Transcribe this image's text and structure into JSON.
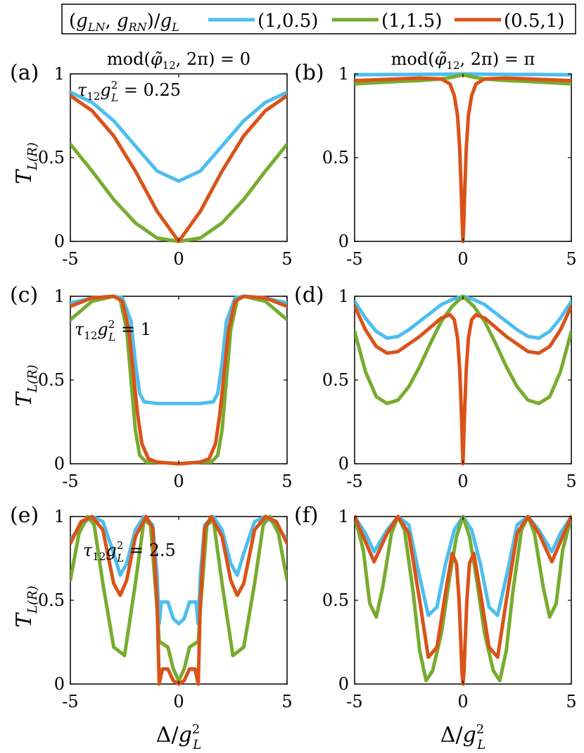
{
  "legend": {
    "title": "(g_LN, g_RN)/g_L",
    "title_parts": [
      "(",
      "g",
      "LN",
      ", ",
      "g",
      "RN",
      ")/",
      "g",
      "L"
    ],
    "entries": [
      "(1,0.5)",
      "(1,1.5)",
      "(0.5,1)"
    ]
  },
  "colors": {
    "blue": "#4DBEEE",
    "green": "#77AC30",
    "red": "#D95319"
  },
  "column_titles": {
    "left": {
      "prefix": "mod(",
      "phi": "φ̃",
      "sub": "12",
      "suffix": ", 2π) = 0"
    },
    "right": {
      "prefix": "mod(",
      "phi": "φ̃",
      "sub": "12",
      "suffix": ", 2π) = π"
    }
  },
  "row_annotations": [
    {
      "tau": "τ",
      "sub": "12",
      "g": "g",
      "sup": "2",
      "gsub": "L",
      "value": " = 0.25"
    },
    {
      "tau": "τ",
      "sub": "12",
      "g": "g",
      "sup": "2",
      "gsub": "L",
      "value": " = 1"
    },
    {
      "tau": "τ",
      "sub": "12",
      "g": "g",
      "sup": "2",
      "gsub": "L",
      "value": " = 2.5"
    }
  ],
  "ylabel": {
    "main": "T",
    "sub": "L(R)"
  },
  "xlabel": {
    "main": "Δ/",
    "g": "g",
    "sup": "2",
    "sub": "L"
  },
  "chart_data": [
    {
      "panel": "(a)",
      "type": "line",
      "xlim": [
        -5,
        5
      ],
      "ylim": [
        0,
        1
      ],
      "xticks": [
        "-5",
        "0",
        "5"
      ],
      "yticks": [
        "0",
        "0.5",
        "1"
      ],
      "series": [
        {
          "name": "(1,0.5)",
          "color": "blue",
          "x": [
            -5,
            -4,
            -3,
            -2,
            -1,
            0,
            1,
            2,
            3,
            4,
            5
          ],
          "y": [
            0.89,
            0.83,
            0.72,
            0.57,
            0.42,
            0.36,
            0.42,
            0.57,
            0.72,
            0.83,
            0.89
          ]
        },
        {
          "name": "(1,1.5)",
          "color": "green",
          "x": [
            -5,
            -4,
            -3,
            -2,
            -1,
            0,
            1,
            2,
            3,
            4,
            5
          ],
          "y": [
            0.58,
            0.42,
            0.25,
            0.11,
            0.02,
            0,
            0.02,
            0.11,
            0.25,
            0.42,
            0.58
          ]
        },
        {
          "name": "(0.5,1)",
          "color": "red",
          "x": [
            -5,
            -4,
            -3,
            -2,
            -1,
            0,
            1,
            2,
            3,
            4,
            5
          ],
          "y": [
            0.87,
            0.78,
            0.63,
            0.42,
            0.18,
            0,
            0.18,
            0.42,
            0.63,
            0.78,
            0.87
          ]
        }
      ]
    },
    {
      "panel": "(b)",
      "type": "line",
      "xlim": [
        -5,
        5
      ],
      "ylim": [
        0,
        1
      ],
      "xticks": [
        "-5",
        "0",
        "5"
      ],
      "yticks": [
        "0",
        "0.5",
        "1"
      ],
      "series": [
        {
          "name": "(1,0.5)",
          "color": "blue",
          "x": [
            -5,
            -2,
            -1,
            0,
            1,
            2,
            5
          ],
          "y": [
            0.995,
            0.997,
            0.998,
            1,
            0.998,
            0.997,
            0.995
          ]
        },
        {
          "name": "(1,1.5)",
          "color": "green",
          "x": [
            -5,
            -3,
            -2,
            -1,
            -0.5,
            0,
            0.5,
            1,
            2,
            3,
            5
          ],
          "y": [
            0.94,
            0.955,
            0.96,
            0.97,
            0.98,
            0.995,
            0.98,
            0.97,
            0.96,
            0.955,
            0.94
          ]
        },
        {
          "name": "(0.5,1)",
          "color": "red",
          "x": [
            -5,
            -2,
            -1,
            -0.6,
            -0.4,
            -0.25,
            -0.15,
            -0.08,
            -0.04,
            0,
            0.04,
            0.08,
            0.15,
            0.25,
            0.4,
            0.6,
            1,
            2,
            5
          ],
          "y": [
            0.96,
            0.975,
            0.97,
            0.94,
            0.87,
            0.75,
            0.55,
            0.3,
            0.12,
            0,
            0.12,
            0.3,
            0.55,
            0.75,
            0.87,
            0.94,
            0.97,
            0.975,
            0.96
          ]
        }
      ]
    },
    {
      "panel": "(c)",
      "type": "line",
      "xlim": [
        -5,
        5
      ],
      "ylim": [
        0,
        1
      ],
      "xticks": [
        "-5",
        "0",
        "5"
      ],
      "yticks": [
        "0",
        "0.5",
        "1"
      ],
      "series": [
        {
          "name": "(1,0.5)",
          "color": "blue",
          "x": [
            -5,
            -4,
            -3,
            -2.6,
            -2.2,
            -2,
            -1.8,
            -1.6,
            -1,
            0,
            1,
            1.6,
            1.8,
            2,
            2.2,
            2.6,
            3,
            4,
            5
          ],
          "y": [
            0.96,
            0.99,
            1,
            0.99,
            0.85,
            0.6,
            0.42,
            0.37,
            0.36,
            0.36,
            0.36,
            0.37,
            0.42,
            0.6,
            0.85,
            0.99,
            1,
            0.99,
            0.96
          ]
        },
        {
          "name": "(1,1.5)",
          "color": "green",
          "x": [
            -5,
            -4,
            -3,
            -2.7,
            -2.4,
            -2.2,
            -2,
            -1.8,
            -1.5,
            -1,
            0,
            1,
            1.5,
            1.8,
            2,
            2.2,
            2.4,
            2.7,
            3,
            4,
            5
          ],
          "y": [
            0.86,
            0.97,
            1,
            0.98,
            0.8,
            0.5,
            0.2,
            0.05,
            0.01,
            0.01,
            0,
            0.01,
            0.01,
            0.05,
            0.2,
            0.5,
            0.8,
            0.98,
            1,
            0.97,
            0.86
          ]
        },
        {
          "name": "(0.5,1)",
          "color": "red",
          "x": [
            -5,
            -4,
            -3,
            -2.6,
            -2.3,
            -2.1,
            -1.9,
            -1.7,
            -1.4,
            -1,
            0,
            1,
            1.4,
            1.7,
            1.9,
            2.1,
            2.3,
            2.6,
            3,
            4,
            5
          ],
          "y": [
            0.94,
            0.99,
            1,
            0.97,
            0.8,
            0.55,
            0.3,
            0.12,
            0.03,
            0.01,
            0,
            0.01,
            0.03,
            0.12,
            0.3,
            0.55,
            0.8,
            0.97,
            1,
            0.99,
            0.94
          ]
        }
      ]
    },
    {
      "panel": "(d)",
      "type": "line",
      "xlim": [
        -5,
        5
      ],
      "ylim": [
        0,
        1
      ],
      "xticks": [
        "-5",
        "0",
        "5"
      ],
      "yticks": [
        "0",
        "0.5",
        "1"
      ],
      "series": [
        {
          "name": "(1,0.5)",
          "color": "blue",
          "x": [
            -5,
            -4.5,
            -4,
            -3.5,
            -3,
            -2.5,
            -2,
            -1.5,
            -1,
            -0.5,
            0,
            0.5,
            1,
            1.5,
            2,
            2.5,
            3,
            3.5,
            4,
            4.5,
            5
          ],
          "y": [
            0.97,
            0.87,
            0.79,
            0.75,
            0.76,
            0.8,
            0.85,
            0.9,
            0.95,
            0.98,
            1,
            0.98,
            0.95,
            0.9,
            0.85,
            0.8,
            0.76,
            0.75,
            0.79,
            0.87,
            0.97
          ]
        },
        {
          "name": "(1,1.5)",
          "color": "green",
          "x": [
            -5,
            -4.5,
            -4,
            -3.5,
            -3,
            -2.5,
            -2,
            -1.5,
            -1,
            -0.5,
            0,
            0.5,
            1,
            1.5,
            2,
            2.5,
            3,
            3.5,
            4,
            4.5,
            5
          ],
          "y": [
            0.79,
            0.55,
            0.4,
            0.36,
            0.38,
            0.46,
            0.58,
            0.72,
            0.85,
            0.94,
            1,
            0.94,
            0.85,
            0.72,
            0.58,
            0.46,
            0.38,
            0.36,
            0.4,
            0.55,
            0.79
          ]
        },
        {
          "name": "(0.5,1)",
          "color": "red",
          "x": [
            -5,
            -4.5,
            -4,
            -3.5,
            -3,
            -2,
            -1,
            -0.6,
            -0.4,
            -0.25,
            -0.15,
            -0.08,
            -0.03,
            0,
            0.03,
            0.08,
            0.15,
            0.25,
            0.4,
            0.6,
            1,
            2,
            3,
            3.5,
            4,
            4.5,
            5
          ],
          "y": [
            0.94,
            0.8,
            0.7,
            0.66,
            0.67,
            0.76,
            0.87,
            0.89,
            0.86,
            0.75,
            0.56,
            0.33,
            0.12,
            0,
            0.12,
            0.33,
            0.56,
            0.75,
            0.86,
            0.89,
            0.87,
            0.76,
            0.67,
            0.66,
            0.7,
            0.8,
            0.94
          ]
        }
      ]
    },
    {
      "panel": "(e)",
      "type": "line",
      "xlim": [
        -5,
        5
      ],
      "ylim": [
        0,
        1
      ],
      "xticks": [
        "-5",
        "0",
        "5"
      ],
      "yticks": [
        "0",
        "0.5",
        "1"
      ],
      "series": [
        {
          "name": "(1,0.5)",
          "color": "blue",
          "x": [
            -5,
            -4.5,
            -4,
            -3.5,
            -3,
            -2.7,
            -2.4,
            -2,
            -1.6,
            -1.2,
            -1,
            -0.9,
            -0.8,
            -0.5,
            -0.25,
            0,
            0.25,
            0.5,
            0.8,
            0.9,
            1,
            1.2,
            1.6,
            2,
            2.4,
            2.7,
            3,
            3.5,
            4,
            4.5,
            5
          ],
          "y": [
            0.86,
            0.95,
            1,
            0.97,
            0.78,
            0.65,
            0.72,
            0.92,
            1,
            0.95,
            0.65,
            0.36,
            0.49,
            0.49,
            0.39,
            0.36,
            0.39,
            0.49,
            0.49,
            0.36,
            0.65,
            0.95,
            1,
            0.92,
            0.72,
            0.65,
            0.78,
            0.97,
            1,
            0.95,
            0.86
          ]
        },
        {
          "name": "(1,1.5)",
          "color": "green",
          "x": [
            -5,
            -4.6,
            -4.2,
            -3.9,
            -3.5,
            -3,
            -2.5,
            -2,
            -1.6,
            -1.3,
            -1,
            -0.9,
            -0.85,
            -0.5,
            -0.25,
            0,
            0.25,
            0.5,
            0.85,
            0.9,
            1,
            1.3,
            1.6,
            2,
            2.5,
            3,
            3.5,
            3.9,
            4.2,
            4.6,
            5
          ],
          "y": [
            0.62,
            0.9,
            1,
            0.95,
            0.6,
            0.22,
            0.17,
            0.6,
            0.98,
            0.95,
            0.45,
            0.25,
            0.25,
            0.22,
            0.09,
            0.02,
            0.09,
            0.22,
            0.25,
            0.25,
            0.45,
            0.95,
            0.98,
            0.6,
            0.17,
            0.22,
            0.6,
            0.95,
            1,
            0.9,
            0.62
          ]
        },
        {
          "name": "(0.5,1)",
          "color": "red",
          "x": [
            -5,
            -4.5,
            -4,
            -3.5,
            -3,
            -2.7,
            -2.4,
            -2,
            -1.5,
            -1.2,
            -1,
            -0.9,
            -0.75,
            -0.5,
            -0.25,
            0,
            0.25,
            0.5,
            0.75,
            0.9,
            1,
            1.2,
            1.5,
            2,
            2.4,
            2.7,
            3,
            3.5,
            4,
            4.5,
            5
          ],
          "y": [
            0.84,
            0.97,
            1,
            0.92,
            0.6,
            0.53,
            0.62,
            0.88,
            1,
            0.93,
            0.5,
            0,
            0.09,
            0.09,
            0.02,
            0,
            0.02,
            0.09,
            0.09,
            0,
            0.5,
            0.93,
            1,
            0.88,
            0.62,
            0.53,
            0.6,
            0.92,
            1,
            0.97,
            0.84
          ]
        }
      ]
    },
    {
      "panel": "(f)",
      "type": "line",
      "xlim": [
        -5,
        5
      ],
      "ylim": [
        0,
        1
      ],
      "xticks": [
        "-5",
        "0",
        "5"
      ],
      "yticks": [
        "0",
        "0.5",
        "1"
      ],
      "series": [
        {
          "name": "(1,0.5)",
          "color": "blue",
          "x": [
            -5,
            -4.5,
            -4.1,
            -3.5,
            -3,
            -2.5,
            -2.1,
            -1.6,
            -1.2,
            -0.8,
            -0.4,
            0,
            0.4,
            0.8,
            1.2,
            1.6,
            2.1,
            2.5,
            3,
            3.5,
            4.1,
            4.5,
            5
          ],
          "y": [
            1,
            0.9,
            0.79,
            0.92,
            1,
            0.95,
            0.7,
            0.41,
            0.46,
            0.72,
            0.92,
            1,
            0.92,
            0.72,
            0.46,
            0.41,
            0.7,
            0.95,
            1,
            0.92,
            0.79,
            0.9,
            1
          ]
        },
        {
          "name": "(1,1.5)",
          "color": "green",
          "x": [
            -5,
            -4.6,
            -4.3,
            -4,
            -3.7,
            -3.3,
            -3,
            -2.7,
            -2.3,
            -2,
            -1.7,
            -1.4,
            -1,
            -0.6,
            -0.3,
            0,
            0.3,
            0.6,
            1,
            1.4,
            1.7,
            2,
            2.3,
            2.7,
            3,
            3.3,
            3.7,
            4,
            4.3,
            4.6,
            5
          ],
          "y": [
            1,
            0.8,
            0.48,
            0.4,
            0.58,
            0.9,
            1,
            0.92,
            0.55,
            0.2,
            0.02,
            0.08,
            0.3,
            0.65,
            0.88,
            1,
            0.88,
            0.65,
            0.3,
            0.08,
            0.02,
            0.2,
            0.55,
            0.92,
            1,
            0.9,
            0.58,
            0.4,
            0.48,
            0.8,
            1
          ]
        },
        {
          "name": "(0.5,1)",
          "color": "red",
          "x": [
            -5,
            -4.5,
            -4.1,
            -3.5,
            -3,
            -2.5,
            -2,
            -1.6,
            -1.2,
            -0.8,
            -0.5,
            -0.3,
            -0.18,
            -0.1,
            -0.05,
            0,
            0.05,
            0.1,
            0.18,
            0.3,
            0.5,
            0.8,
            1.2,
            1.6,
            2,
            2.5,
            3,
            3.5,
            4.1,
            4.5,
            5
          ],
          "y": [
            1,
            0.85,
            0.73,
            0.9,
            1,
            0.9,
            0.5,
            0.16,
            0.22,
            0.55,
            0.78,
            0.72,
            0.5,
            0.25,
            0.08,
            0,
            0.08,
            0.25,
            0.5,
            0.72,
            0.78,
            0.55,
            0.22,
            0.16,
            0.5,
            0.9,
            1,
            0.9,
            0.73,
            0.85,
            1
          ]
        }
      ]
    }
  ]
}
